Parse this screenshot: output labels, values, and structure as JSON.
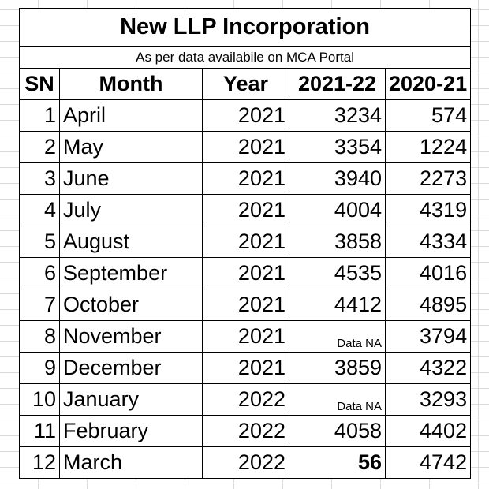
{
  "table": {
    "title": "New LLP Incorporation",
    "subtitle": "As per data availabile on MCA Portal",
    "headers": [
      "SN",
      "Month",
      "Year",
      "2021-22",
      "2020-21"
    ],
    "rows": [
      {
        "sn": "1",
        "month": "April",
        "year": "2021",
        "v2122": "3234",
        "v2021": "574"
      },
      {
        "sn": "2",
        "month": "May",
        "year": "2021",
        "v2122": "3354",
        "v2021": "1224"
      },
      {
        "sn": "3",
        "month": "June",
        "year": "2021",
        "v2122": "3940",
        "v2021": "2273"
      },
      {
        "sn": "4",
        "month": "July",
        "year": "2021",
        "v2122": "4004",
        "v2021": "4319"
      },
      {
        "sn": "5",
        "month": "August",
        "year": "2021",
        "v2122": "3858",
        "v2021": "4334"
      },
      {
        "sn": "6",
        "month": "September",
        "year": "2021",
        "v2122": "4535",
        "v2021": "4016"
      },
      {
        "sn": "7",
        "month": "October",
        "year": "2021",
        "v2122": "4412",
        "v2021": "4895"
      },
      {
        "sn": "8",
        "month": "November",
        "year": "2021",
        "v2122": "Data NA",
        "v2021": "3794"
      },
      {
        "sn": "9",
        "month": "December",
        "year": "2021",
        "v2122": "3859",
        "v2021": "4322"
      },
      {
        "sn": "10",
        "month": "January",
        "year": "2022",
        "v2122": "Data NA",
        "v2021": "3293"
      },
      {
        "sn": "11",
        "month": "February",
        "year": "2022",
        "v2122": "4058",
        "v2021": "4402"
      },
      {
        "sn": "12",
        "month": "March",
        "year": "2022",
        "v2122": "56",
        "v2021": "4742"
      }
    ]
  }
}
